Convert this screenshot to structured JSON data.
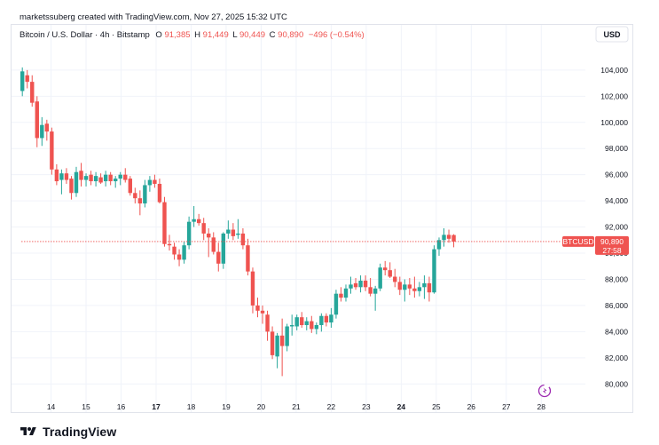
{
  "header": {
    "attribution": "marketssuberg created with TradingView.com, Nov 27, 2025 15:32 UTC"
  },
  "legend": {
    "symbol": "Bitcoin / U.S. Dollar · 4h · Bitstamp",
    "o_label": "O",
    "o_value": "91,385",
    "h_label": "H",
    "h_value": "91,449",
    "l_label": "L",
    "l_value": "90,449",
    "c_label": "C",
    "c_value": "90,890",
    "change": "−496 (−0.54%)"
  },
  "currency": "USD",
  "price_tag": {
    "symbol": "BTCUSD",
    "price": "90,890",
    "countdown": "27:58"
  },
  "brand": "TradingView",
  "colors": {
    "up": "#26a69a",
    "down": "#ef5350",
    "grid": "#f0f3fa",
    "axis_text": "#131722",
    "price_line": "#ef5350"
  },
  "chart_data": {
    "type": "candlestick",
    "series_name": "BTCUSD",
    "interval": "4h",
    "y_ticks": [
      80000,
      82000,
      84000,
      86000,
      88000,
      90000,
      92000,
      94000,
      96000,
      98000,
      100000,
      102000,
      104000
    ],
    "y_tick_labels": [
      "80,000",
      "82,000",
      "84,000",
      "86,000",
      "88,000",
      "90,000",
      "92,000",
      "94,000",
      "96,000",
      "98,000",
      "100,000",
      "102,000",
      "104,000"
    ],
    "ylim": [
      79000,
      106300
    ],
    "x_ticks": [
      13.85,
      14.85,
      15.85,
      16.85,
      17.85,
      18.85,
      19.85,
      20.85,
      21.85,
      22.85,
      23.85,
      24.85,
      25.85,
      26.85,
      27.85
    ],
    "x_tick_labels": [
      "14",
      "15",
      "16",
      "17",
      "18",
      "19",
      "20",
      "21",
      "22",
      "23",
      "24",
      "25",
      "26",
      "27",
      "28"
    ],
    "bold_ticks": [
      "17",
      "24"
    ],
    "xlim": [
      13.0,
      28.4
    ],
    "last_price": 90890,
    "candles": [
      {
        "t": 13.03,
        "o": 102400,
        "h": 104200,
        "l": 102000,
        "c": 103900
      },
      {
        "t": 13.17,
        "o": 103600,
        "h": 104000,
        "l": 102600,
        "c": 103100
      },
      {
        "t": 13.31,
        "o": 103100,
        "h": 103600,
        "l": 101200,
        "c": 101500
      },
      {
        "t": 13.45,
        "o": 101600,
        "h": 102000,
        "l": 98100,
        "c": 98800
      },
      {
        "t": 13.59,
        "o": 98800,
        "h": 100400,
        "l": 98200,
        "c": 99800
      },
      {
        "t": 13.73,
        "o": 99900,
        "h": 100200,
        "l": 98600,
        "c": 99300
      },
      {
        "t": 13.87,
        "o": 99300,
        "h": 99600,
        "l": 96000,
        "c": 96400
      },
      {
        "t": 14.01,
        "o": 96400,
        "h": 96800,
        "l": 95200,
        "c": 95500
      },
      {
        "t": 14.15,
        "o": 95600,
        "h": 96400,
        "l": 94500,
        "c": 96100
      },
      {
        "t": 14.29,
        "o": 96100,
        "h": 96500,
        "l": 95300,
        "c": 95600
      },
      {
        "t": 14.43,
        "o": 95700,
        "h": 95900,
        "l": 94100,
        "c": 94600
      },
      {
        "t": 14.57,
        "o": 94600,
        "h": 96600,
        "l": 94300,
        "c": 96200
      },
      {
        "t": 14.71,
        "o": 96300,
        "h": 96900,
        "l": 95100,
        "c": 95600
      },
      {
        "t": 14.85,
        "o": 95600,
        "h": 96100,
        "l": 95100,
        "c": 95900
      },
      {
        "t": 14.99,
        "o": 96000,
        "h": 96300,
        "l": 95200,
        "c": 95500
      },
      {
        "t": 15.13,
        "o": 95500,
        "h": 96200,
        "l": 95100,
        "c": 95900
      },
      {
        "t": 15.27,
        "o": 95800,
        "h": 96100,
        "l": 95300,
        "c": 95400
      },
      {
        "t": 15.41,
        "o": 95500,
        "h": 96300,
        "l": 95100,
        "c": 96000
      },
      {
        "t": 15.55,
        "o": 96000,
        "h": 96200,
        "l": 95200,
        "c": 95500
      },
      {
        "t": 15.69,
        "o": 95500,
        "h": 95900,
        "l": 95000,
        "c": 95700
      },
      {
        "t": 15.83,
        "o": 95700,
        "h": 96200,
        "l": 95200,
        "c": 96000
      },
      {
        "t": 15.97,
        "o": 96000,
        "h": 96500,
        "l": 95400,
        "c": 95600
      },
      {
        "t": 16.11,
        "o": 95700,
        "h": 95900,
        "l": 94400,
        "c": 94600
      },
      {
        "t": 16.25,
        "o": 94600,
        "h": 95000,
        "l": 93800,
        "c": 94200
      },
      {
        "t": 16.39,
        "o": 94200,
        "h": 94800,
        "l": 92900,
        "c": 93800
      },
      {
        "t": 16.53,
        "o": 93800,
        "h": 95600,
        "l": 93500,
        "c": 95200
      },
      {
        "t": 16.67,
        "o": 95200,
        "h": 95900,
        "l": 94700,
        "c": 95600
      },
      {
        "t": 16.81,
        "o": 95600,
        "h": 96000,
        "l": 95000,
        "c": 95300
      },
      {
        "t": 16.95,
        "o": 95300,
        "h": 95700,
        "l": 93800,
        "c": 93900
      },
      {
        "t": 17.09,
        "o": 93900,
        "h": 94300,
        "l": 90500,
        "c": 90700
      },
      {
        "t": 17.23,
        "o": 90700,
        "h": 91400,
        "l": 90200,
        "c": 90600
      },
      {
        "t": 17.37,
        "o": 90500,
        "h": 90800,
        "l": 89500,
        "c": 89900
      },
      {
        "t": 17.51,
        "o": 89900,
        "h": 90300,
        "l": 89000,
        "c": 89500
      },
      {
        "t": 17.65,
        "o": 89500,
        "h": 90900,
        "l": 89200,
        "c": 90600
      },
      {
        "t": 17.79,
        "o": 90600,
        "h": 92800,
        "l": 90300,
        "c": 92400
      },
      {
        "t": 17.93,
        "o": 92400,
        "h": 93600,
        "l": 92000,
        "c": 92600
      },
      {
        "t": 18.07,
        "o": 92600,
        "h": 93000,
        "l": 92100,
        "c": 92300
      },
      {
        "t": 18.21,
        "o": 92300,
        "h": 92700,
        "l": 91000,
        "c": 91500
      },
      {
        "t": 18.35,
        "o": 91500,
        "h": 91900,
        "l": 89700,
        "c": 91200
      },
      {
        "t": 18.49,
        "o": 91200,
        "h": 91600,
        "l": 89900,
        "c": 90100
      },
      {
        "t": 18.63,
        "o": 90100,
        "h": 90800,
        "l": 88600,
        "c": 89200
      },
      {
        "t": 18.77,
        "o": 89200,
        "h": 91600,
        "l": 88800,
        "c": 91500
      },
      {
        "t": 18.91,
        "o": 91500,
        "h": 92500,
        "l": 91100,
        "c": 91800
      },
      {
        "t": 19.05,
        "o": 91800,
        "h": 92300,
        "l": 91000,
        "c": 91300
      },
      {
        "t": 19.19,
        "o": 91400,
        "h": 92600,
        "l": 91100,
        "c": 91500
      },
      {
        "t": 19.33,
        "o": 91500,
        "h": 91900,
        "l": 90300,
        "c": 90600
      },
      {
        "t": 19.47,
        "o": 90600,
        "h": 91100,
        "l": 88300,
        "c": 88600
      },
      {
        "t": 19.61,
        "o": 88600,
        "h": 88900,
        "l": 85400,
        "c": 86000
      },
      {
        "t": 19.75,
        "o": 86000,
        "h": 86600,
        "l": 85100,
        "c": 85600
      },
      {
        "t": 19.89,
        "o": 85600,
        "h": 86000,
        "l": 84600,
        "c": 85400
      },
      {
        "t": 20.03,
        "o": 85300,
        "h": 85600,
        "l": 83300,
        "c": 84000
      },
      {
        "t": 20.17,
        "o": 84000,
        "h": 84400,
        "l": 81900,
        "c": 82200
      },
      {
        "t": 20.31,
        "o": 82100,
        "h": 83900,
        "l": 81200,
        "c": 83700
      },
      {
        "t": 20.45,
        "o": 83700,
        "h": 85000,
        "l": 80600,
        "c": 82900
      },
      {
        "t": 20.59,
        "o": 82900,
        "h": 84600,
        "l": 82500,
        "c": 84400
      },
      {
        "t": 20.73,
        "o": 84400,
        "h": 85300,
        "l": 83700,
        "c": 84500
      },
      {
        "t": 20.87,
        "o": 84400,
        "h": 85300,
        "l": 84100,
        "c": 85100
      },
      {
        "t": 21.01,
        "o": 85100,
        "h": 85500,
        "l": 84300,
        "c": 84500
      },
      {
        "t": 21.15,
        "o": 84500,
        "h": 85100,
        "l": 84100,
        "c": 84800
      },
      {
        "t": 21.29,
        "o": 84800,
        "h": 85200,
        "l": 83900,
        "c": 84200
      },
      {
        "t": 21.43,
        "o": 84200,
        "h": 84700,
        "l": 83800,
        "c": 84500
      },
      {
        "t": 21.57,
        "o": 84500,
        "h": 85400,
        "l": 84000,
        "c": 85200
      },
      {
        "t": 21.71,
        "o": 85200,
        "h": 85400,
        "l": 84400,
        "c": 84700
      },
      {
        "t": 21.85,
        "o": 84700,
        "h": 85800,
        "l": 84300,
        "c": 85300
      },
      {
        "t": 21.99,
        "o": 85300,
        "h": 87200,
        "l": 85000,
        "c": 86900
      },
      {
        "t": 22.13,
        "o": 86900,
        "h": 87400,
        "l": 86300,
        "c": 86600
      },
      {
        "t": 22.27,
        "o": 86600,
        "h": 87600,
        "l": 86300,
        "c": 87300
      },
      {
        "t": 22.41,
        "o": 87300,
        "h": 88200,
        "l": 86900,
        "c": 87600
      },
      {
        "t": 22.55,
        "o": 87700,
        "h": 88100,
        "l": 87200,
        "c": 87400
      },
      {
        "t": 22.69,
        "o": 87400,
        "h": 88300,
        "l": 87000,
        "c": 87900
      },
      {
        "t": 22.83,
        "o": 87900,
        "h": 88300,
        "l": 87100,
        "c": 87400
      },
      {
        "t": 22.97,
        "o": 87400,
        "h": 88100,
        "l": 86700,
        "c": 86900
      },
      {
        "t": 23.11,
        "o": 86900,
        "h": 87500,
        "l": 85600,
        "c": 87300
      },
      {
        "t": 23.25,
        "o": 87300,
        "h": 89200,
        "l": 87100,
        "c": 88900
      },
      {
        "t": 23.39,
        "o": 88900,
        "h": 89400,
        "l": 88300,
        "c": 88700
      },
      {
        "t": 23.53,
        "o": 88700,
        "h": 89300,
        "l": 88100,
        "c": 88200
      },
      {
        "t": 23.67,
        "o": 88200,
        "h": 88800,
        "l": 87400,
        "c": 87800
      },
      {
        "t": 23.81,
        "o": 87800,
        "h": 88200,
        "l": 86800,
        "c": 87200
      },
      {
        "t": 23.95,
        "o": 87200,
        "h": 88000,
        "l": 86300,
        "c": 87600
      },
      {
        "t": 24.09,
        "o": 87600,
        "h": 88100,
        "l": 86800,
        "c": 87300
      },
      {
        "t": 24.23,
        "o": 87300,
        "h": 88200,
        "l": 86600,
        "c": 87100
      },
      {
        "t": 24.37,
        "o": 87100,
        "h": 87800,
        "l": 86700,
        "c": 87400
      },
      {
        "t": 24.51,
        "o": 87400,
        "h": 88300,
        "l": 86500,
        "c": 87700
      },
      {
        "t": 24.65,
        "o": 87700,
        "h": 88200,
        "l": 86300,
        "c": 87000
      },
      {
        "t": 24.79,
        "o": 87000,
        "h": 90600,
        "l": 86900,
        "c": 90300
      },
      {
        "t": 24.93,
        "o": 90300,
        "h": 91200,
        "l": 89800,
        "c": 91000
      },
      {
        "t": 25.07,
        "o": 91000,
        "h": 91900,
        "l": 90500,
        "c": 91400
      },
      {
        "t": 25.21,
        "o": 91400,
        "h": 91800,
        "l": 90800,
        "c": 91100
      },
      {
        "t": 25.35,
        "o": 91385,
        "h": 91449,
        "l": 90449,
        "c": 90890
      }
    ]
  }
}
